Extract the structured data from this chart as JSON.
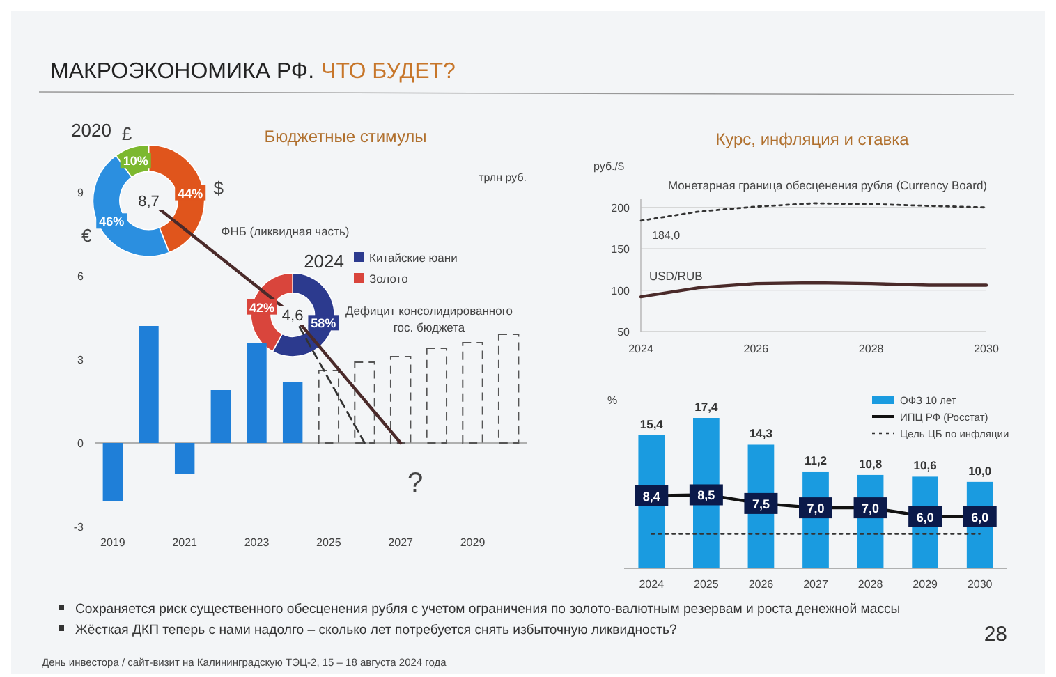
{
  "chart_data": [
    {
      "type": "other",
      "title": "МАКРОЭКОНОМИКА РФ.",
      "subtitle": "ЧТО БУДЕТ?",
      "annotations": [
        "Сохраняется риск существенного обесценения рубля с учетом ограничения по золото-валютным резервам и роста денежной массы",
        "Жёсткая ДКП теперь с нами надолго – сколько лет потребуется снять избыточную ликвидность?",
        "28",
        "День инвестора / сайт-визит на Калининградскую ТЭЦ-2, 15 – 18 августа 2024 года"
      ]
    },
    {
      "type": "donut",
      "title": "2020",
      "categories": [
        "$",
        "€",
        "£"
      ],
      "values": [
        44,
        46,
        10
      ],
      "colors": [
        "#e0551c",
        "#2b8fe0",
        "#7cb82f"
      ],
      "value_labels": [
        "44%",
        "46%",
        "10%"
      ],
      "annotations": [
        "8,7"
      ]
    },
    {
      "type": "donut",
      "title": "2024",
      "categories": [
        "Китайские юани",
        "Золото"
      ],
      "values": [
        58,
        42
      ],
      "colors": [
        "#2c3a8e",
        "#d9453c"
      ],
      "value_labels": [
        "58%",
        "42%"
      ],
      "legend": "right",
      "annotations": [
        "4,6"
      ]
    },
    {
      "type": "bar",
      "title": "Бюджетные стимулы",
      "ylabel": "трлн руб.",
      "x": [
        2019,
        2020,
        2021,
        2022,
        2023,
        2024,
        2025,
        2026,
        2027,
        2028,
        2029,
        2030
      ],
      "xlim": [
        2018.5,
        2030.5
      ],
      "xticks": [
        2019,
        2021,
        2023,
        2025,
        2027,
        2029
      ],
      "ylim": [
        -3,
        9
      ],
      "yticks": [
        -3,
        0,
        3,
        6,
        9
      ],
      "series": [
        {
          "color": "#1f7fd8",
          "values": [
            -2.1,
            4.2,
            -1.1,
            1.9,
            3.6,
            2.2,
            null,
            null,
            null,
            null,
            null,
            null
          ]
        },
        {
          "color": "#555555",
          "line_style": "dashed",
          "values": [
            null,
            null,
            null,
            null,
            null,
            null,
            2.6,
            2.9,
            3.1,
            3.4,
            3.6,
            3.9
          ]
        },
        {
          "type": "line",
          "name": "ФНБ (ликвидная часть)",
          "color": "#4a2a2a",
          "x": [
            2020,
            2024,
            2027
          ],
          "values": [
            8.7,
            4.6,
            0
          ]
        },
        {
          "type": "line",
          "color": "#333333",
          "line_style": "dashed",
          "x": [
            2024,
            2026
          ],
          "values": [
            4.6,
            0
          ]
        }
      ],
      "annotations": [
        "Дефицит консолидированного",
        "гос. бюджета",
        "?"
      ]
    },
    {
      "type": "line",
      "title": "Курс, инфляция и ставка",
      "ylabel": "руб./$",
      "x": [
        2024,
        2025,
        2026,
        2027,
        2028,
        2029,
        2030
      ],
      "xlim": [
        2024,
        2030
      ],
      "xticks": [
        2024,
        2026,
        2028,
        2030
      ],
      "ylim": [
        50,
        210
      ],
      "yticks": [
        50,
        100,
        150,
        200
      ],
      "grid": "y",
      "series": [
        {
          "name": "Монетарная граница обесценения рубля (Currency Board)",
          "color": "#333333",
          "line_style": "dotted",
          "values": [
            184,
            195,
            201,
            205,
            204,
            202,
            200
          ]
        },
        {
          "name": "USD/RUB",
          "color": "#4a2a2a",
          "values": [
            92,
            103,
            108,
            109,
            108,
            106,
            106
          ]
        }
      ],
      "annotations": [
        {
          "text": "184,0",
          "x": 2024,
          "y": 184
        }
      ]
    },
    {
      "type": "bar",
      "ylabel": "%",
      "categories": [
        "2024",
        "2025",
        "2026",
        "2027",
        "2028",
        "2029",
        "2030"
      ],
      "legend": "top right",
      "series": [
        {
          "name": "ОФЗ 10 лет",
          "color": "#1a9be0",
          "values": [
            15.4,
            17.4,
            14.3,
            11.2,
            10.8,
            10.6,
            10.0
          ],
          "value_labels": [
            "15,4",
            "17,4",
            "14,3",
            "11,2",
            "10,8",
            "10,6",
            "10,0"
          ]
        },
        {
          "type": "line",
          "name": "ИПЦ РФ (Росстат)",
          "color": "#111111",
          "marker": "square",
          "values": [
            8.4,
            8.5,
            7.5,
            7.0,
            7.0,
            6.0,
            6.0
          ],
          "value_labels": [
            "8,4",
            "8,5",
            "7,5",
            "7,0",
            "7,0",
            "6,0",
            "6,0"
          ]
        },
        {
          "type": "line",
          "name": "Цель ЦБ по инфляции",
          "color": "#333333",
          "line_style": "dotted",
          "values": [
            4,
            4,
            4,
            4,
            4,
            4,
            4
          ]
        }
      ]
    }
  ]
}
